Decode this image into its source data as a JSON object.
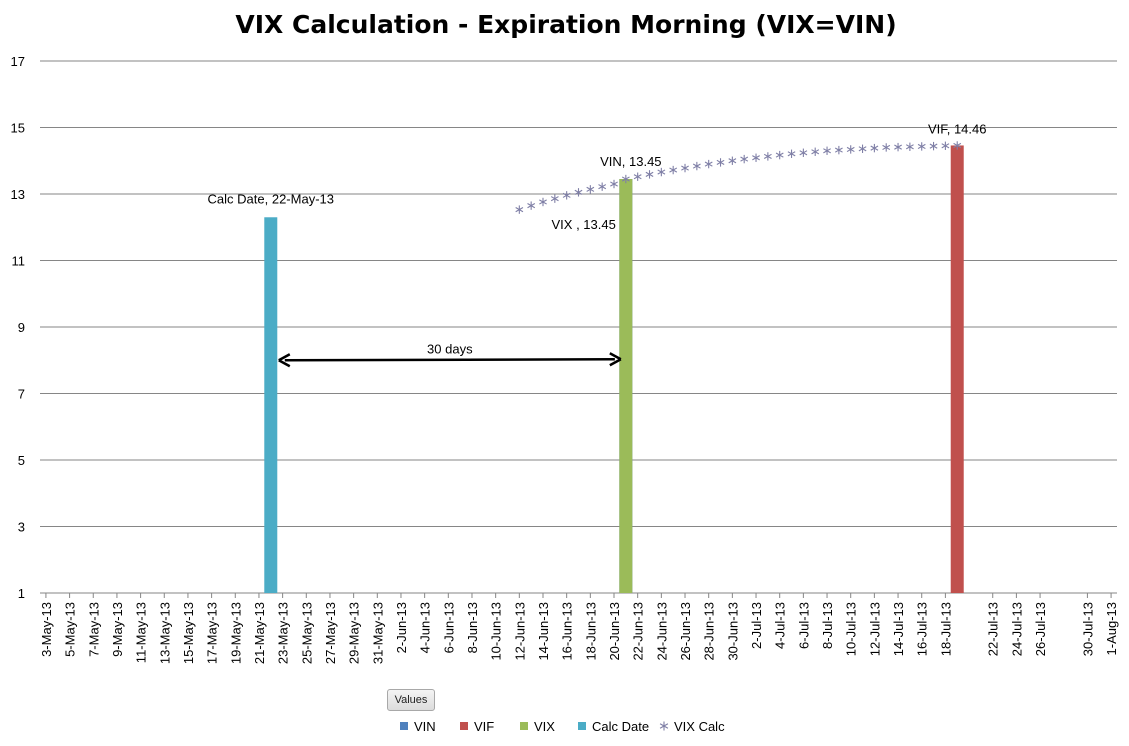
{
  "chart_data": {
    "type": "bar",
    "title": "VIX Calculation - Expiration Morning (VIX=VIN)",
    "ylim": [
      1,
      17
    ],
    "yticks": [
      1,
      3,
      5,
      7,
      9,
      11,
      13,
      15,
      17
    ],
    "grid": true,
    "legend_position": "bottom",
    "x_start": "2013-05-03",
    "x_end": "2013-08-01",
    "x_ticks": [
      "3-May-13",
      "5-May-13",
      "7-May-13",
      "9-May-13",
      "11-May-13",
      "13-May-13",
      "15-May-13",
      "17-May-13",
      "19-May-13",
      "21-May-13",
      "23-May-13",
      "25-May-13",
      "27-May-13",
      "29-May-13",
      "31-May-13",
      "2-Jun-13",
      "4-Jun-13",
      "6-Jun-13",
      "8-Jun-13",
      "10-Jun-13",
      "12-Jun-13",
      "14-Jun-13",
      "16-Jun-13",
      "18-Jun-13",
      "20-Jun-13",
      "22-Jun-13",
      "24-Jun-13",
      "26-Jun-13",
      "28-Jun-13",
      "30-Jun-13",
      "2-Jul-13",
      "4-Jul-13",
      "6-Jul-13",
      "8-Jul-13",
      "10-Jul-13",
      "12-Jul-13",
      "14-Jul-13",
      "16-Jul-13",
      "18-Jul-13",
      "22-Jul-13",
      "24-Jul-13",
      "26-Jul-13",
      "30-Jul-13",
      "1-Aug-13"
    ],
    "series": [
      {
        "name": "VIN",
        "color": "#4f81bd",
        "type": "bar",
        "points": [
          {
            "x": "2013-06-21",
            "y": 13.45
          }
        ]
      },
      {
        "name": "VIF",
        "color": "#c0504d",
        "type": "bar",
        "points": [
          {
            "x": "2013-07-19",
            "y": 14.46
          }
        ]
      },
      {
        "name": "VIX",
        "color": "#9bbb59",
        "type": "bar",
        "points": [
          {
            "x": "2013-06-21",
            "y": 13.45
          }
        ]
      },
      {
        "name": "Calc Date",
        "color": "#4bacc6",
        "type": "bar",
        "points": [
          {
            "x": "2013-05-22",
            "y": 12.3
          }
        ]
      },
      {
        "name": "VIX Calc",
        "color": "#7f7fa6",
        "type": "scatter",
        "marker": "asterisk",
        "points": [
          {
            "x": "2013-06-12",
            "y": 12.53
          },
          {
            "x": "2013-06-13",
            "y": 12.65
          },
          {
            "x": "2013-06-14",
            "y": 12.76
          },
          {
            "x": "2013-06-15",
            "y": 12.86
          },
          {
            "x": "2013-06-16",
            "y": 12.96
          },
          {
            "x": "2013-06-17",
            "y": 13.05
          },
          {
            "x": "2013-06-18",
            "y": 13.14
          },
          {
            "x": "2013-06-19",
            "y": 13.22
          },
          {
            "x": "2013-06-20",
            "y": 13.3
          },
          {
            "x": "2013-06-21",
            "y": 13.45
          },
          {
            "x": "2013-06-22",
            "y": 13.52
          },
          {
            "x": "2013-06-23",
            "y": 13.59
          },
          {
            "x": "2013-06-24",
            "y": 13.66
          },
          {
            "x": "2013-06-25",
            "y": 13.72
          },
          {
            "x": "2013-06-26",
            "y": 13.78
          },
          {
            "x": "2013-06-27",
            "y": 13.84
          },
          {
            "x": "2013-06-28",
            "y": 13.9
          },
          {
            "x": "2013-06-29",
            "y": 13.95
          },
          {
            "x": "2013-06-30",
            "y": 14.0
          },
          {
            "x": "2013-07-01",
            "y": 14.05
          },
          {
            "x": "2013-07-02",
            "y": 14.09
          },
          {
            "x": "2013-07-03",
            "y": 14.13
          },
          {
            "x": "2013-07-04",
            "y": 14.17
          },
          {
            "x": "2013-07-05",
            "y": 14.21
          },
          {
            "x": "2013-07-06",
            "y": 14.24
          },
          {
            "x": "2013-07-07",
            "y": 14.27
          },
          {
            "x": "2013-07-08",
            "y": 14.3
          },
          {
            "x": "2013-07-09",
            "y": 14.32
          },
          {
            "x": "2013-07-10",
            "y": 14.34
          },
          {
            "x": "2013-07-11",
            "y": 14.36
          },
          {
            "x": "2013-07-12",
            "y": 14.38
          },
          {
            "x": "2013-07-13",
            "y": 14.4
          },
          {
            "x": "2013-07-14",
            "y": 14.41
          },
          {
            "x": "2013-07-15",
            "y": 14.42
          },
          {
            "x": "2013-07-16",
            "y": 14.43
          },
          {
            "x": "2013-07-17",
            "y": 14.44
          },
          {
            "x": "2013-07-18",
            "y": 14.45
          },
          {
            "x": "2013-07-19",
            "y": 14.46
          }
        ]
      }
    ],
    "data_labels": [
      {
        "text": "Calc Date, 22-May-13",
        "x": "2013-05-22",
        "y": 12.3
      },
      {
        "text": "VIN, 13.45",
        "x": "2013-06-21",
        "y": 13.45
      },
      {
        "text": "VIX , 13.45",
        "x": "2013-06-21",
        "y": 13.45
      },
      {
        "text": "VIF, 14.46",
        "x": "2013-07-19",
        "y": 14.46
      }
    ],
    "annotation": {
      "text": "30 days",
      "from": "2013-05-22",
      "to": "2013-06-21",
      "y": 8
    }
  },
  "pivot_button": {
    "label": "Values"
  }
}
